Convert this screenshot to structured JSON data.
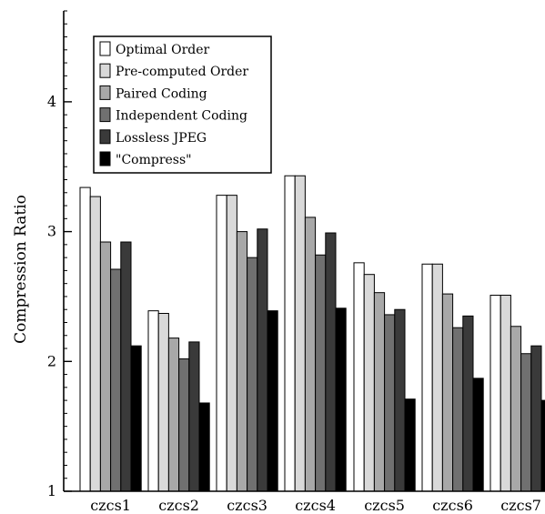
{
  "chart_data": {
    "type": "bar",
    "title": "",
    "xlabel": "",
    "ylabel": "Compression Ratio",
    "ylim": [
      1,
      4.7
    ],
    "yticks": [
      1,
      2,
      3,
      4
    ],
    "grid": false,
    "legend_position": "top-left",
    "categories": [
      "czcs1",
      "czcs2",
      "czcs3",
      "czcs4",
      "czcs5",
      "czcs6",
      "czcs7"
    ],
    "series": [
      {
        "name": "Optimal Order",
        "color": "#ffffff",
        "values": [
          3.34,
          2.39,
          3.28,
          3.43,
          2.76,
          2.75,
          2.51
        ]
      },
      {
        "name": "Pre-computed Order",
        "color": "#d9d9d9",
        "values": [
          3.27,
          2.37,
          3.28,
          3.43,
          2.67,
          2.75,
          2.51
        ]
      },
      {
        "name": "Paired Coding",
        "color": "#a8a8a8",
        "values": [
          2.92,
          2.18,
          3.0,
          3.11,
          2.53,
          2.52,
          2.27
        ]
      },
      {
        "name": "Independent Coding",
        "color": "#707070",
        "values": [
          2.71,
          2.02,
          2.8,
          2.82,
          2.36,
          2.26,
          2.06
        ]
      },
      {
        "name": "Lossless JPEG",
        "color": "#3a3a3a",
        "values": [
          2.92,
          2.15,
          3.02,
          2.99,
          2.4,
          2.35,
          2.12
        ]
      },
      {
        "name": "\"Compress\"",
        "color": "#000000",
        "values": [
          2.12,
          1.68,
          2.39,
          2.41,
          1.71,
          1.87,
          1.7
        ]
      }
    ]
  }
}
